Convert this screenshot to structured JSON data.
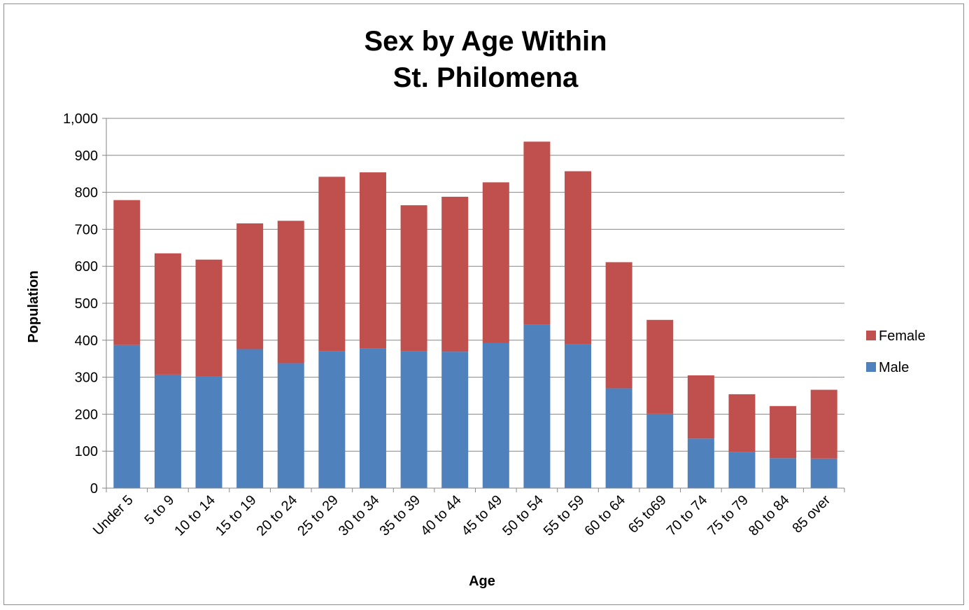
{
  "chart_data": {
    "type": "bar",
    "stacked": true,
    "title": [
      "Sex by Age Within",
      "St. Philomena"
    ],
    "xlabel": "Age",
    "ylabel": "Population",
    "ylim": [
      0,
      1000
    ],
    "yticks": [
      0,
      100,
      200,
      300,
      400,
      500,
      600,
      700,
      800,
      900,
      1000
    ],
    "ytick_labels": [
      "0",
      "100",
      "200",
      "300",
      "400",
      "500",
      "600",
      "700",
      "800",
      "900",
      "1,000"
    ],
    "grid": true,
    "legend_position": "right",
    "categories": [
      "Under 5",
      "5 to 9",
      "10 to 14",
      "15 to 19",
      "20 to 24",
      "25 to 29",
      "30 to 34",
      "35 to 39",
      "40 to 44",
      "45 to 49",
      "50 to 54",
      "55 to 59",
      "60 to 64",
      "65 to69",
      "70 to 74",
      "75 to 79",
      "80 to 84",
      "85 over"
    ],
    "series": [
      {
        "name": "Male",
        "color": "#4f81bd",
        "values": [
          387,
          307,
          303,
          376,
          338,
          370,
          378,
          370,
          369,
          393,
          442,
          389,
          270,
          201,
          134,
          97,
          81,
          80
        ]
      },
      {
        "name": "Female",
        "color": "#c0504d",
        "values": [
          392,
          328,
          315,
          340,
          385,
          472,
          476,
          395,
          419,
          434,
          495,
          468,
          341,
          254,
          171,
          157,
          141,
          186
        ]
      }
    ],
    "legend_order": [
      "Female",
      "Male"
    ]
  }
}
